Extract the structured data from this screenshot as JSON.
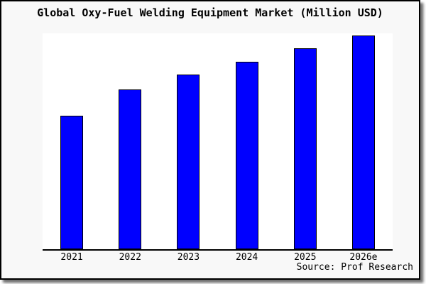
{
  "title": "Global Oxy-Fuel Welding Equipment Market (Million USD)",
  "source": "Source: Prof Research",
  "colors": {
    "bar_fill": "#0000ff",
    "bar_border": "#000000",
    "frame_bg": "#f8f8f8",
    "plot_bg": "#ffffff",
    "axis": "#000000",
    "text": "#000000"
  },
  "chart_data": {
    "type": "bar",
    "title": "Global Oxy-Fuel Welding Equipment Market (Million USD)",
    "categories": [
      "2021",
      "2022",
      "2023",
      "2024",
      "2025",
      "2026e"
    ],
    "values": [
      62,
      74,
      81,
      87,
      93,
      99
    ],
    "value_note": "y-axis unlabeled in source image; values estimated as percent of plot height",
    "xlabel": "",
    "ylabel": "",
    "ylim": [
      0,
      100
    ],
    "grid": false,
    "legend_position": "none",
    "annotations": [
      "Source: Prof Research"
    ]
  }
}
